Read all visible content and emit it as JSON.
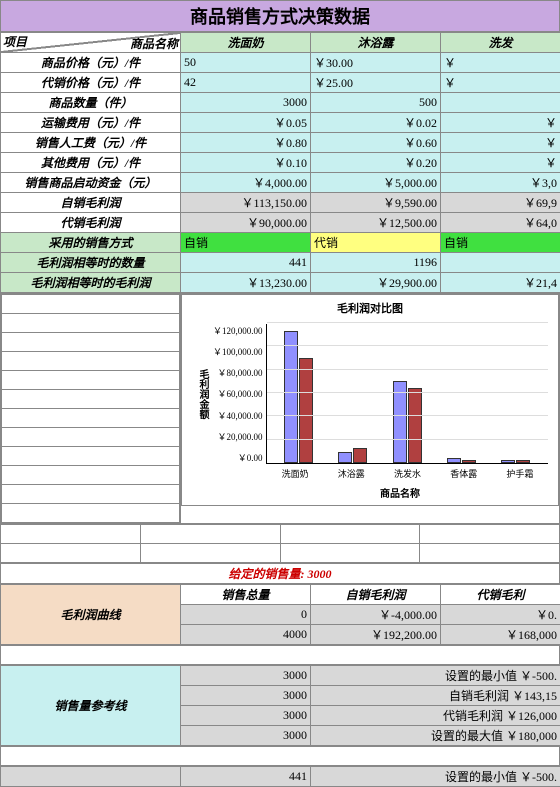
{
  "title": "商品销售方式决策数据",
  "corner": {
    "top": "项目",
    "bottom": "商品名称"
  },
  "products": [
    "洗面奶",
    "沐浴露",
    "洗发"
  ],
  "rows": [
    {
      "label": "商品价格（元）/件",
      "bg": "cyan-bg",
      "vals": [
        "50",
        "￥30.00",
        "￥"
      ],
      "align": "num-l"
    },
    {
      "label": "代销价格（元）/件",
      "bg": "cyan-bg",
      "vals": [
        "42",
        "￥25.00",
        "￥"
      ],
      "align": "num-l"
    },
    {
      "label": "商品数量（件）",
      "bg": "cyan-bg",
      "vals": [
        "3000",
        "500",
        ""
      ],
      "align": "num-r"
    },
    {
      "label": "运输费用（元）/件",
      "bg": "cyan-bg",
      "vals": [
        "￥0.05",
        "￥0.02",
        "￥"
      ],
      "align": "num-r"
    },
    {
      "label": "销售人工费（元）/件",
      "bg": "cyan-bg",
      "vals": [
        "￥0.80",
        "￥0.60",
        "￥"
      ],
      "align": "num-r"
    },
    {
      "label": "其他费用（元）/件",
      "bg": "cyan-bg",
      "vals": [
        "￥0.10",
        "￥0.20",
        "￥"
      ],
      "align": "num-r"
    },
    {
      "label": "销售商品启动资金（元）",
      "bg": "cyan-bg",
      "vals": [
        "￥4,000.00",
        "￥5,000.00",
        "￥3,0"
      ],
      "align": "num-r"
    },
    {
      "label": "自销毛利润",
      "bg": "gray-bg",
      "vals": [
        "￥113,150.00",
        "￥9,590.00",
        "￥69,9"
      ],
      "align": "num-r"
    },
    {
      "label": "代销毛利润",
      "bg": "gray-bg",
      "vals": [
        "￥90,000.00",
        "￥12,500.00",
        "￥64,0"
      ],
      "align": "num-r"
    }
  ],
  "method_row": {
    "label": "采用的销售方式",
    "cells": [
      {
        "val": "自销",
        "bg": "lime-bg"
      },
      {
        "val": "代销",
        "bg": "yellow-bg"
      },
      {
        "val": "自销",
        "bg": "lime-bg"
      }
    ]
  },
  "equal_rows": [
    {
      "label": "毛利润相等时的数量",
      "vals": [
        "441",
        "1196",
        ""
      ]
    },
    {
      "label": "毛利润相等时的毛利润",
      "vals": [
        "￥13,230.00",
        "￥29,900.00",
        "￥21,4"
      ]
    }
  ],
  "chart": {
    "title": "毛利润对比图",
    "ylabel": "毛利润金额",
    "xlabel": "商品名称",
    "ymax": 120000,
    "yticks": [
      "￥120,000.00",
      "￥100,000.00",
      "￥80,000.00",
      "￥60,000.00",
      "￥40,000.00",
      "￥20,000.00",
      "￥0.00"
    ],
    "categories": [
      "洗面奶",
      "沐浴露",
      "洗发水",
      "香体露",
      "护手霜"
    ],
    "series1_color": "#9090ff",
    "series2_color": "#b04040",
    "data": [
      {
        "s1": 113150,
        "s2": 90000
      },
      {
        "s1": 9590,
        "s2": 12500
      },
      {
        "s1": 69900,
        "s2": 64000
      },
      {
        "s1": 4000,
        "s2": 3000
      },
      {
        "s1": 3000,
        "s2": 2500
      }
    ]
  },
  "given_sales": "给定的销售量: 3000",
  "curve": {
    "label": "毛利润曲线",
    "headers": [
      "销售总量",
      "自销毛利润",
      "代销毛利"
    ],
    "rows": [
      [
        "0",
        "￥-4,000.00",
        "￥0."
      ],
      [
        "4000",
        "￥192,200.00",
        "￥168,000"
      ]
    ]
  },
  "refline": {
    "label": "销售量参考线",
    "rows": [
      [
        "3000",
        "设置的最小值 ￥-500."
      ],
      [
        "3000",
        "自销毛利润 ￥143,15"
      ],
      [
        "3000",
        "代销毛利润 ￥126,000"
      ],
      [
        "3000",
        "设置的最大值 ￥180,000"
      ]
    ]
  },
  "lastrow": [
    "441",
    "设置的最小值 ￥-500."
  ]
}
